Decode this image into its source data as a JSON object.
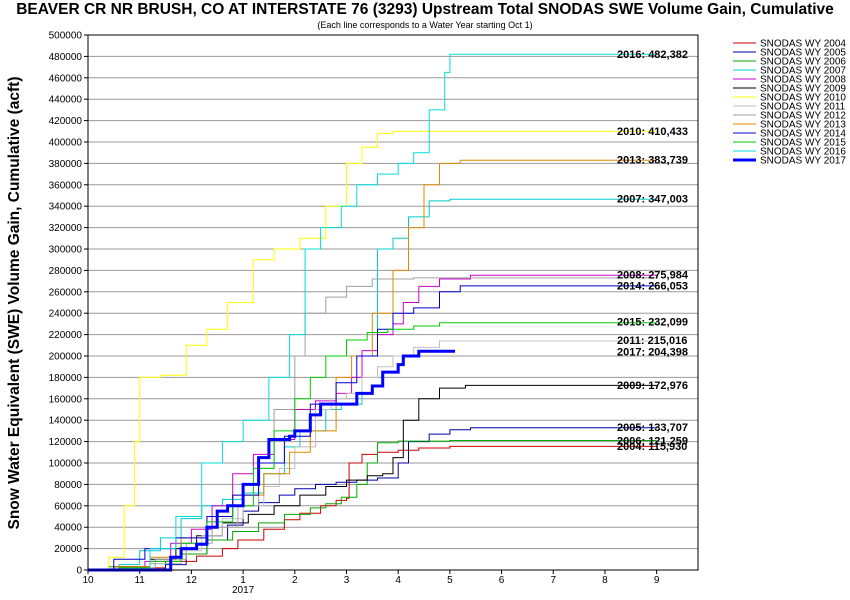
{
  "chart_data": {
    "type": "line",
    "title": "BEAVER CR NR BRUSH, CO AT INTERSTATE 76 (3293) Upstream Total SNODAS SWE Volume Gain, Cumulative",
    "subtitle": "(Each line corresponds to a Water Year starting Oct 1)",
    "ylabel": "Snow Water Equivalent (SWE) Volume Gain, Cumulative (acft)",
    "xlabel": "",
    "x_ticks": [
      "10",
      "11",
      "12",
      "1",
      "2",
      "3",
      "4",
      "5",
      "6",
      "7",
      "8",
      "9"
    ],
    "x_year_label": "2017",
    "xlim": [
      10,
      21.8
    ],
    "ylim": [
      0,
      500000
    ],
    "y_ticks": [
      0,
      20000,
      40000,
      60000,
      80000,
      100000,
      120000,
      140000,
      160000,
      180000,
      200000,
      220000,
      240000,
      260000,
      280000,
      300000,
      320000,
      340000,
      360000,
      380000,
      400000,
      420000,
      440000,
      460000,
      480000,
      500000
    ],
    "grid": "horizontal",
    "legend_position": "right",
    "series": [
      {
        "name": "SNODAS WY 2004",
        "color": "#cc0000",
        "width": 1,
        "end_label": "2004: 115,930",
        "points": [
          [
            10,
            0
          ],
          [
            11.0,
            2000
          ],
          [
            11.5,
            8000
          ],
          [
            12.1,
            13000
          ],
          [
            12.6,
            20000
          ],
          [
            12.9,
            28000
          ],
          [
            13.4,
            38000
          ],
          [
            13.8,
            47000
          ],
          [
            14.1,
            53000
          ],
          [
            14.5,
            60000
          ],
          [
            14.8,
            65000
          ],
          [
            15.0,
            67000
          ],
          [
            15.05,
            100000
          ],
          [
            15.3,
            108000
          ],
          [
            15.6,
            110000
          ],
          [
            16.0,
            112000
          ],
          [
            16.4,
            114000
          ],
          [
            17.0,
            115500
          ],
          [
            21.0,
            115930
          ]
        ]
      },
      {
        "name": "SNODAS WY 2005",
        "color": "#0000aa",
        "width": 1,
        "end_label": "2005: 133,707",
        "points": [
          [
            10,
            0
          ],
          [
            10.8,
            0
          ],
          [
            11.5,
            5000
          ],
          [
            11.9,
            15000
          ],
          [
            12.3,
            28000
          ],
          [
            12.7,
            42000
          ],
          [
            13.0,
            55000
          ],
          [
            13.3,
            63000
          ],
          [
            13.7,
            70000
          ],
          [
            14.0,
            76000
          ],
          [
            14.4,
            80000
          ],
          [
            14.8,
            82000
          ],
          [
            15.2,
            84000
          ],
          [
            15.6,
            86000
          ],
          [
            16.0,
            100000
          ],
          [
            16.2,
            120000
          ],
          [
            16.6,
            127000
          ],
          [
            17.0,
            131000
          ],
          [
            17.4,
            133000
          ],
          [
            21.0,
            133707
          ]
        ]
      },
      {
        "name": "SNODAS WY 2006",
        "color": "#00aa00",
        "width": 1,
        "end_label": "2006: 121,259",
        "points": [
          [
            10,
            0
          ],
          [
            10.4,
            3000
          ],
          [
            11.2,
            6000
          ],
          [
            11.8,
            15000
          ],
          [
            12.3,
            28000
          ],
          [
            12.8,
            36000
          ],
          [
            13.3,
            44000
          ],
          [
            13.8,
            52000
          ],
          [
            14.3,
            58000
          ],
          [
            14.6,
            62000
          ],
          [
            14.9,
            68000
          ],
          [
            15.2,
            80000
          ],
          [
            15.4,
            100000
          ],
          [
            15.6,
            119000
          ],
          [
            16.0,
            120500
          ],
          [
            17.0,
            121000
          ],
          [
            21.0,
            121259
          ]
        ]
      },
      {
        "name": "SNODAS WY 2007",
        "color": "#00cccc",
        "width": 1,
        "end_label": "2007: 347,003",
        "points": [
          [
            10,
            0
          ],
          [
            10.6,
            5000
          ],
          [
            11.0,
            18000
          ],
          [
            11.4,
            30000
          ],
          [
            11.8,
            48000
          ],
          [
            12.2,
            60000
          ],
          [
            12.6,
            66000
          ],
          [
            13.0,
            72000
          ],
          [
            13.4,
            90000
          ],
          [
            13.8,
            115000
          ],
          [
            14.1,
            130000
          ],
          [
            14.6,
            150000
          ],
          [
            14.9,
            155000
          ],
          [
            15.3,
            200000
          ],
          [
            15.6,
            300000
          ],
          [
            15.9,
            310000
          ],
          [
            16.2,
            330000
          ],
          [
            16.6,
            345000
          ],
          [
            17.0,
            346500
          ],
          [
            21.0,
            347003
          ]
        ]
      },
      {
        "name": "SNODAS WY 2008",
        "color": "#cc00cc",
        "width": 1,
        "end_label": "2008: 275,984",
        "points": [
          [
            10,
            0
          ],
          [
            10.4,
            1000
          ],
          [
            11.1,
            8000
          ],
          [
            11.6,
            25000
          ],
          [
            12.0,
            38000
          ],
          [
            12.4,
            60000
          ],
          [
            12.8,
            90000
          ],
          [
            13.2,
            108000
          ],
          [
            13.6,
            122000
          ],
          [
            14.0,
            150000
          ],
          [
            14.4,
            158000
          ],
          [
            14.8,
            165000
          ],
          [
            15.1,
            180000
          ],
          [
            15.3,
            205000
          ],
          [
            15.6,
            220000
          ],
          [
            15.9,
            230000
          ],
          [
            16.1,
            250000
          ],
          [
            16.4,
            265000
          ],
          [
            16.8,
            272000
          ],
          [
            17.4,
            275500
          ],
          [
            21.0,
            275984
          ]
        ]
      },
      {
        "name": "SNODAS WY 2009",
        "color": "#000000",
        "width": 1,
        "end_label": "2009: 172,976",
        "points": [
          [
            10,
            0
          ],
          [
            10.5,
            3000
          ],
          [
            11.2,
            10000
          ],
          [
            11.7,
            20000
          ],
          [
            12.1,
            32000
          ],
          [
            12.6,
            44000
          ],
          [
            13.1,
            52000
          ],
          [
            13.6,
            60000
          ],
          [
            14.1,
            70000
          ],
          [
            14.6,
            78000
          ],
          [
            15.0,
            84000
          ],
          [
            15.4,
            88000
          ],
          [
            15.7,
            90000
          ],
          [
            15.9,
            105000
          ],
          [
            16.1,
            140000
          ],
          [
            16.4,
            160000
          ],
          [
            16.8,
            170000
          ],
          [
            17.3,
            172500
          ],
          [
            21.0,
            172976
          ]
        ]
      },
      {
        "name": "SNODAS WY 2010",
        "color": "#ffff00",
        "width": 1,
        "end_label": "2010: 410,433",
        "points": [
          [
            10,
            0
          ],
          [
            10.4,
            12000
          ],
          [
            10.7,
            60000
          ],
          [
            10.9,
            120000
          ],
          [
            11.0,
            180000
          ],
          [
            11.4,
            182000
          ],
          [
            11.9,
            210000
          ],
          [
            12.3,
            225000
          ],
          [
            12.7,
            250000
          ],
          [
            13.2,
            290000
          ],
          [
            13.6,
            300000
          ],
          [
            14.1,
            310000
          ],
          [
            14.6,
            340000
          ],
          [
            15.0,
            380000
          ],
          [
            15.3,
            395000
          ],
          [
            15.6,
            408000
          ],
          [
            15.9,
            410000
          ],
          [
            21.0,
            410433
          ]
        ]
      },
      {
        "name": "SNODAS WY 2011",
        "color": "#c0c0c0",
        "width": 1,
        "end_label": "2011: 215,016",
        "points": [
          [
            10,
            0
          ],
          [
            10.6,
            2000
          ],
          [
            11.2,
            6000
          ],
          [
            11.8,
            18000
          ],
          [
            12.2,
            32000
          ],
          [
            12.6,
            48000
          ],
          [
            13.0,
            60000
          ],
          [
            13.4,
            78000
          ],
          [
            13.7,
            95000
          ],
          [
            14.0,
            115000
          ],
          [
            14.4,
            150000
          ],
          [
            14.7,
            160000
          ],
          [
            15.0,
            165000
          ],
          [
            15.3,
            180000
          ],
          [
            15.6,
            190000
          ],
          [
            15.9,
            200000
          ],
          [
            16.3,
            208000
          ],
          [
            16.8,
            214000
          ],
          [
            21.0,
            215016
          ]
        ]
      },
      {
        "name": "SNODAS WY 2012",
        "color": "#a0a0a0",
        "width": 1,
        "end_label": "",
        "points": [
          [
            10,
            0
          ],
          [
            10.7,
            2000
          ],
          [
            11.3,
            10000
          ],
          [
            11.9,
            25000
          ],
          [
            12.4,
            40000
          ],
          [
            12.9,
            60000
          ],
          [
            13.3,
            95000
          ],
          [
            13.6,
            150000
          ],
          [
            14.0,
            200000
          ],
          [
            14.2,
            240000
          ],
          [
            14.6,
            255000
          ],
          [
            15.0,
            265000
          ],
          [
            15.5,
            272000
          ],
          [
            16.3,
            273000
          ],
          [
            21.0,
            273500
          ]
        ]
      },
      {
        "name": "SNODAS WY 2013",
        "color": "#dd8800",
        "width": 1,
        "end_label": "2013: 383,739",
        "points": [
          [
            10,
            0
          ],
          [
            10.5,
            3000
          ],
          [
            11.2,
            12000
          ],
          [
            11.8,
            30000
          ],
          [
            12.3,
            50000
          ],
          [
            12.8,
            70000
          ],
          [
            13.4,
            90000
          ],
          [
            13.9,
            110000
          ],
          [
            14.3,
            130000
          ],
          [
            14.8,
            180000
          ],
          [
            15.1,
            200000
          ],
          [
            15.5,
            240000
          ],
          [
            15.9,
            280000
          ],
          [
            16.2,
            320000
          ],
          [
            16.5,
            360000
          ],
          [
            16.8,
            380000
          ],
          [
            17.2,
            383000
          ],
          [
            21.0,
            383739
          ]
        ]
      },
      {
        "name": "SNODAS WY 2014",
        "color": "#0000cc",
        "width": 1,
        "end_label": "2014: 266,053",
        "points": [
          [
            10,
            0
          ],
          [
            10.5,
            10000
          ],
          [
            11.1,
            20000
          ],
          [
            11.7,
            30000
          ],
          [
            12.3,
            50000
          ],
          [
            12.8,
            70000
          ],
          [
            13.3,
            100000
          ],
          [
            13.8,
            125000
          ],
          [
            14.3,
            155000
          ],
          [
            14.8,
            175000
          ],
          [
            15.2,
            200000
          ],
          [
            15.6,
            225000
          ],
          [
            15.9,
            240000
          ],
          [
            16.3,
            245000
          ],
          [
            16.8,
            260000
          ],
          [
            17.2,
            265500
          ],
          [
            21.0,
            266053
          ]
        ]
      },
      {
        "name": "SNODAS WY 2015",
        "color": "#00cc00",
        "width": 1,
        "end_label": "2015: 232,099",
        "points": [
          [
            10,
            0
          ],
          [
            10.6,
            2000
          ],
          [
            11.2,
            8000
          ],
          [
            11.8,
            25000
          ],
          [
            12.3,
            45000
          ],
          [
            12.8,
            60000
          ],
          [
            13.2,
            95000
          ],
          [
            13.6,
            130000
          ],
          [
            14.0,
            160000
          ],
          [
            14.3,
            180000
          ],
          [
            14.6,
            200000
          ],
          [
            15.0,
            215000
          ],
          [
            15.4,
            222000
          ],
          [
            15.8,
            225000
          ],
          [
            16.3,
            228000
          ],
          [
            16.8,
            231000
          ],
          [
            21.0,
            232099
          ]
        ]
      },
      {
        "name": "SNODAS WY 2016",
        "color": "#00dddd",
        "width": 1,
        "end_label": "2016: 482,382",
        "points": [
          [
            10,
            0
          ],
          [
            10.7,
            1000
          ],
          [
            11.2,
            20000
          ],
          [
            11.7,
            50000
          ],
          [
            12.2,
            100000
          ],
          [
            12.6,
            120000
          ],
          [
            13.0,
            140000
          ],
          [
            13.5,
            180000
          ],
          [
            13.9,
            220000
          ],
          [
            14.2,
            300000
          ],
          [
            14.5,
            320000
          ],
          [
            14.9,
            340000
          ],
          [
            15.2,
            360000
          ],
          [
            15.6,
            370000
          ],
          [
            16.0,
            380000
          ],
          [
            16.3,
            390000
          ],
          [
            16.6,
            430000
          ],
          [
            16.9,
            465000
          ],
          [
            17.0,
            482000
          ],
          [
            21.0,
            482382
          ]
        ]
      },
      {
        "name": "SNODAS WY 2017",
        "color": "#0000ff",
        "width": 3,
        "end_label": "2017: 204,398",
        "points": [
          [
            10,
            0
          ],
          [
            11.5,
            0
          ],
          [
            11.6,
            12000
          ],
          [
            11.8,
            20000
          ],
          [
            12.1,
            24000
          ],
          [
            12.3,
            40000
          ],
          [
            12.5,
            55000
          ],
          [
            12.7,
            60000
          ],
          [
            13.0,
            80000
          ],
          [
            13.3,
            105000
          ],
          [
            13.5,
            122000
          ],
          [
            13.9,
            125000
          ],
          [
            14.0,
            130000
          ],
          [
            14.3,
            145000
          ],
          [
            14.5,
            155000
          ],
          [
            14.9,
            155000
          ],
          [
            15.0,
            155000
          ],
          [
            15.2,
            165000
          ],
          [
            15.5,
            172000
          ],
          [
            15.7,
            185000
          ],
          [
            16.0,
            192000
          ],
          [
            16.1,
            200000
          ],
          [
            16.4,
            204398
          ],
          [
            17.1,
            204398
          ]
        ]
      }
    ]
  }
}
